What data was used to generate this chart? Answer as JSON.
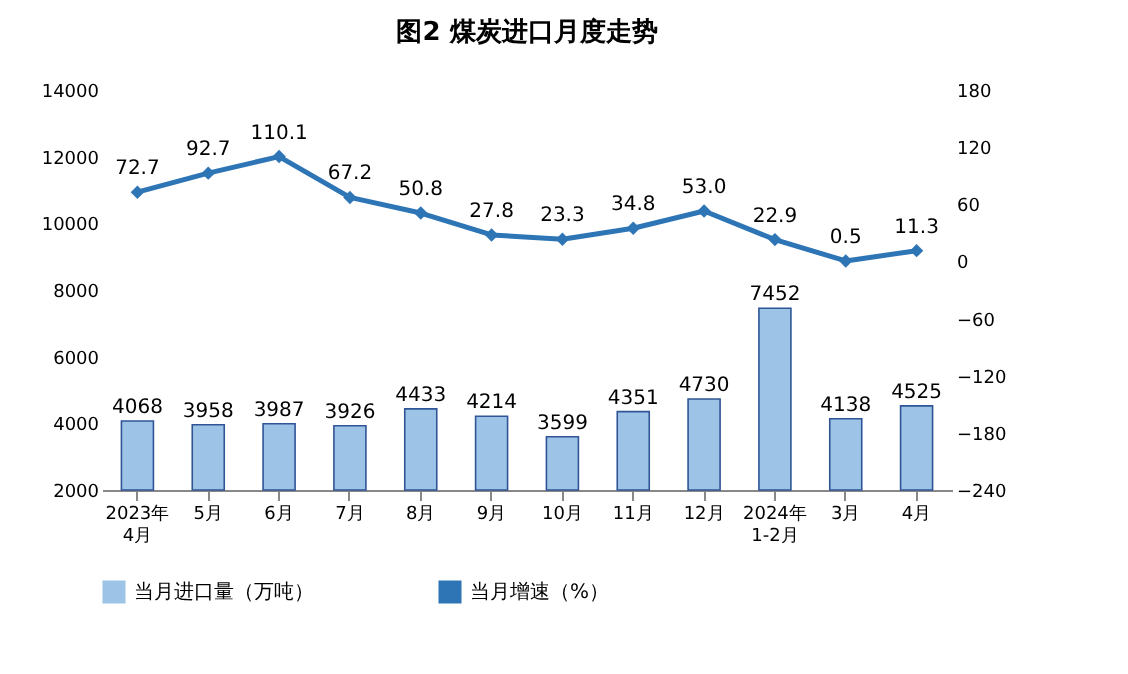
{
  "chart_data": {
    "type": "bar",
    "title": "图2  煤炭进口月度走势",
    "categories": [
      "2023年\n4月",
      "5月",
      "6月",
      "7月",
      "8月",
      "9月",
      "10月",
      "11月",
      "12月",
      "2024年\n1-2月",
      "3月",
      "4月"
    ],
    "series": [
      {
        "name": "当月进口量（万吨）",
        "color": "#9dc3e6",
        "values": [
          4068,
          3958,
          3987,
          3926,
          4433,
          4214,
          3599,
          4351,
          4730,
          7452,
          4138,
          4525
        ]
      },
      {
        "name": "当月增速（%）",
        "type": "line",
        "axis": "y2",
        "color": "#2e75b6",
        "values": [
          72.7,
          92.7,
          110.1,
          67.2,
          50.8,
          27.8,
          23.3,
          34.8,
          53.0,
          22.9,
          0.5,
          11.3
        ],
        "value_labels": [
          "72.7",
          "92.7",
          "110.1",
          "67.2",
          "50.8",
          "27.8",
          "23.3",
          "34.8",
          "53.0",
          "22.9",
          "0.5",
          "11.3"
        ]
      }
    ],
    "ylim": [
      2000,
      14000
    ],
    "yticks": [
      2000,
      4000,
      6000,
      8000,
      10000,
      12000,
      14000
    ],
    "y2lim": [
      -240,
      180
    ],
    "y2ticks": [
      -240,
      -180,
      -120,
      -60,
      0,
      60,
      120,
      180
    ],
    "data_labels": true,
    "marker": "diamond",
    "legend": "bottom",
    "grid": false
  }
}
